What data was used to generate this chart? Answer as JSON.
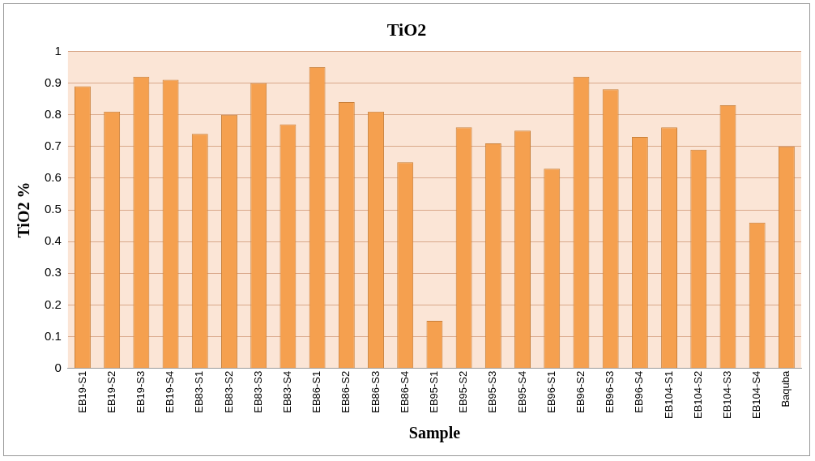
{
  "chart_data": {
    "type": "bar",
    "title": "TiO2",
    "xlabel": "Sample",
    "ylabel": "TiO2 %",
    "categories": [
      "EB19-S1",
      "EB19-S2",
      "EB19-S3",
      "EB19-S4",
      "EB83-S1",
      "EB83-S2",
      "EB83-S3",
      "EB83-S4",
      "EB86-S1",
      "EB86-S2",
      "EB86-S3",
      "EB86-S4",
      "EB95-S1",
      "EB95-S2",
      "EB95-S3",
      "EB95-S4",
      "EB96-S1",
      "EB96-S2",
      "EB96-S3",
      "EB96-S4",
      "EB104-S1",
      "EB104-S2",
      "EB104-S3",
      "EB104-S4",
      "Baquba"
    ],
    "values": [
      0.89,
      0.81,
      0.92,
      0.91,
      0.74,
      0.8,
      0.9,
      0.77,
      0.95,
      0.84,
      0.81,
      0.65,
      0.15,
      0.76,
      0.71,
      0.75,
      0.63,
      0.92,
      0.88,
      0.73,
      0.76,
      0.69,
      0.83,
      0.46,
      0.7
    ],
    "color": "#f5a04f",
    "ylim": [
      0,
      1
    ],
    "yticks": [
      0,
      0.1,
      0.2,
      0.3,
      0.4,
      0.5,
      0.6,
      0.7,
      0.8,
      0.9,
      1
    ],
    "grid": "y"
  }
}
